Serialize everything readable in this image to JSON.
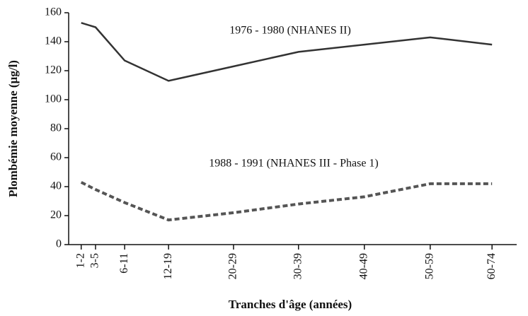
{
  "chart_data": {
    "type": "line",
    "x_label": "Tranches d'âge (années)",
    "y_label": "Plombémie moyenne (µg/l)",
    "categories": [
      "1-2",
      "3-5",
      "6-11",
      "12-19",
      "20-29",
      "30-39",
      "40-49",
      "50-59",
      "60-74"
    ],
    "series": [
      {
        "name": "1976 - 1980  (NHANES II)",
        "color": "#333333",
        "dash": false,
        "values": [
          153,
          150,
          127,
          113,
          123,
          133,
          138,
          143,
          138
        ]
      },
      {
        "name": "1988 - 1991  (NHANES III - Phase 1)",
        "color": "#555555",
        "dash": true,
        "values": [
          43,
          38,
          29,
          17,
          22,
          28,
          33,
          42,
          42
        ]
      }
    ],
    "ylim": [
      0,
      160
    ],
    "yticks": [
      0,
      20,
      40,
      60,
      80,
      100,
      120,
      140,
      160
    ],
    "grid": false
  }
}
